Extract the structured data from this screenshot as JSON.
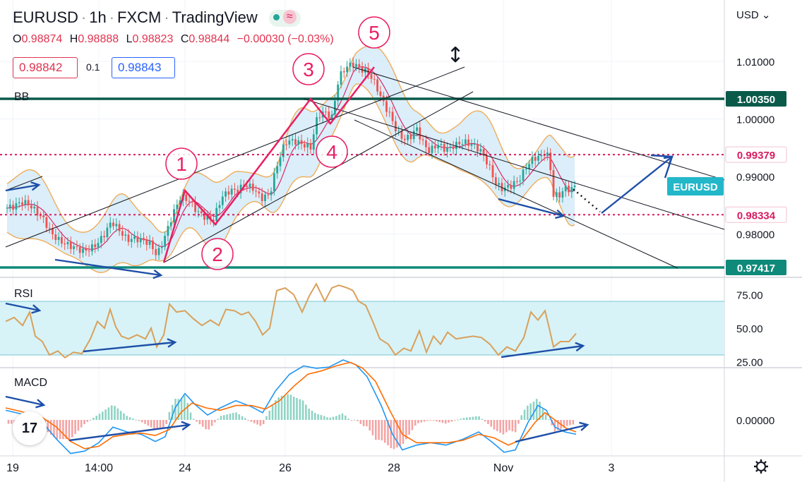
{
  "header": {
    "symbol": "EURUSD",
    "interval": "1h",
    "broker": "FXCM",
    "platform": "TradingView",
    "separator": "·",
    "ohlc": {
      "o_label": "O",
      "o": "0.98874",
      "h_label": "H",
      "h": "0.98888",
      "l_label": "L",
      "l": "0.98823",
      "c_label": "C",
      "c": "0.98844",
      "change": "−0.00030 (−0.03%)"
    },
    "sell_price": "0.98842",
    "spread": "0.1",
    "buy_price": "0.98843"
  },
  "currency_menu": "USD",
  "colors": {
    "up": "#26a69a",
    "down": "#ef5350",
    "bb_band": "#f0a850",
    "bb_fill": "#cfe8f7",
    "bb_basis": "#d81b60",
    "wave": "#e91e63",
    "arrow": "#1e4fa8",
    "level_dark": "#0a5a4a",
    "level_teal": "#0f8a7a",
    "level_red": "#d81b60",
    "rsi_line": "#d9a05b",
    "rsi_band": "#d7f3f7",
    "macd_line": "#2196f3",
    "signal_line": "#ff6d00",
    "label_teal": "#22b7c9"
  },
  "chart_data": [
    {
      "type": "candlestick",
      "title": "EURUSD · 1h · FXCM",
      "y_axis": {
        "range": [
          0.9725,
          1.0195
        ],
        "ticks": [
          "1.01000",
          "1.00000",
          "0.99000",
          "0.98000"
        ]
      },
      "x_axis": {
        "range": [
          0,
          1026
        ],
        "ticks": [
          {
            "label": "19",
            "x": 18
          },
          {
            "label": "14:00",
            "x": 140
          },
          {
            "label": "24",
            "x": 262
          },
          {
            "label": "26",
            "x": 404
          },
          {
            "label": "28",
            "x": 558
          },
          {
            "label": "Nov",
            "x": 713
          },
          {
            "label": "3",
            "x": 866
          }
        ]
      },
      "close_path": [
        [
          8,
          0.9845
        ],
        [
          20,
          0.9848
        ],
        [
          30,
          0.9856
        ],
        [
          40,
          0.9852
        ],
        [
          52,
          0.9838
        ],
        [
          62,
          0.9825
        ],
        [
          72,
          0.9802
        ],
        [
          82,
          0.979
        ],
        [
          94,
          0.9782
        ],
        [
          106,
          0.9776
        ],
        [
          118,
          0.977
        ],
        [
          128,
          0.9774
        ],
        [
          140,
          0.9786
        ],
        [
          150,
          0.9804
        ],
        [
          158,
          0.9822
        ],
        [
          168,
          0.9808
        ],
        [
          180,
          0.979
        ],
        [
          192,
          0.9792
        ],
        [
          204,
          0.9788
        ],
        [
          214,
          0.9782
        ],
        [
          222,
          0.9762
        ],
        [
          232,
          0.979
        ],
        [
          244,
          0.9832
        ],
        [
          256,
          0.9865
        ],
        [
          268,
          0.9858
        ],
        [
          280,
          0.9838
        ],
        [
          292,
          0.9828
        ],
        [
          302,
          0.9824
        ],
        [
          314,
          0.9864
        ],
        [
          326,
          0.9876
        ],
        [
          336,
          0.9875
        ],
        [
          346,
          0.9886
        ],
        [
          358,
          0.988
        ],
        [
          370,
          0.9862
        ],
        [
          382,
          0.9868
        ],
        [
          392,
          0.9918
        ],
        [
          404,
          0.996
        ],
        [
          416,
          0.9962
        ],
        [
          428,
          0.9956
        ],
        [
          440,
          0.995
        ],
        [
          450,
          1.0006
        ],
        [
          460,
          1.0012
        ],
        [
          470,
          1.0002
        ],
        [
          480,
          1.0072
        ],
        [
          490,
          1.009
        ],
        [
          500,
          1.0096
        ],
        [
          512,
          1.0086
        ],
        [
          522,
          1.008
        ],
        [
          532,
          1.006
        ],
        [
          542,
          1.003
        ],
        [
          552,
          1.0008
        ],
        [
          562,
          0.9978
        ],
        [
          572,
          0.9964
        ],
        [
          582,
          0.997
        ],
        [
          590,
          0.9984
        ],
        [
          598,
          0.996
        ],
        [
          608,
          0.9944
        ],
        [
          620,
          0.9956
        ],
        [
          632,
          0.9946
        ],
        [
          644,
          0.9954
        ],
        [
          656,
          0.996
        ],
        [
          668,
          0.9956
        ],
        [
          680,
          0.9946
        ],
        [
          692,
          0.992
        ],
        [
          702,
          0.9888
        ],
        [
          712,
          0.9878
        ],
        [
          724,
          0.9884
        ],
        [
          736,
          0.9895
        ],
        [
          746,
          0.9918
        ],
        [
          756,
          0.9932
        ],
        [
          766,
          0.9934
        ],
        [
          774,
          0.9945
        ],
        [
          780,
          0.991
        ],
        [
          784,
          0.9868
        ],
        [
          792,
          0.9866
        ],
        [
          800,
          0.988
        ],
        [
          808,
          0.9877
        ],
        [
          816,
          0.9884
        ]
      ],
      "price_labels": [
        {
          "value": 1.0035,
          "text": "1.00350",
          "style": "dark"
        },
        {
          "value": 0.99379,
          "text": "0.99379",
          "style": "red"
        },
        {
          "value": 0.98334,
          "text": "0.98334",
          "style": "red"
        },
        {
          "value": 0.97417,
          "text": "0.97417",
          "style": "teal"
        }
      ],
      "symbol_tag": {
        "text": "EURUSD",
        "value": 0.98844
      },
      "indicator_label": "BB",
      "wave_labels": [
        "1",
        "2",
        "3",
        "4",
        "5"
      ]
    },
    {
      "type": "line",
      "title": "RSI",
      "y_ticks": [
        "75.00",
        "50.00",
        "25.00"
      ],
      "band": [
        30,
        70
      ],
      "path": [
        [
          8,
          55
        ],
        [
          20,
          58
        ],
        [
          32,
          52
        ],
        [
          42,
          62
        ],
        [
          50,
          44
        ],
        [
          60,
          40
        ],
        [
          70,
          30
        ],
        [
          82,
          33
        ],
        [
          92,
          28
        ],
        [
          104,
          32
        ],
        [
          116,
          31
        ],
        [
          128,
          42
        ],
        [
          138,
          55
        ],
        [
          148,
          50
        ],
        [
          156,
          64
        ],
        [
          164,
          51
        ],
        [
          172,
          44
        ],
        [
          182,
          42
        ],
        [
          194,
          45
        ],
        [
          206,
          42
        ],
        [
          214,
          50
        ],
        [
          222,
          36
        ],
        [
          232,
          45
        ],
        [
          240,
          68
        ],
        [
          250,
          62
        ],
        [
          262,
          63
        ],
        [
          274,
          57
        ],
        [
          286,
          52
        ],
        [
          298,
          56
        ],
        [
          310,
          52
        ],
        [
          320,
          64
        ],
        [
          332,
          63
        ],
        [
          342,
          60
        ],
        [
          352,
          62
        ],
        [
          362,
          55
        ],
        [
          372,
          45
        ],
        [
          382,
          50
        ],
        [
          392,
          78
        ],
        [
          404,
          80
        ],
        [
          416,
          75
        ],
        [
          428,
          62
        ],
        [
          438,
          74
        ],
        [
          448,
          83
        ],
        [
          460,
          70
        ],
        [
          470,
          80
        ],
        [
          480,
          82
        ],
        [
          492,
          80
        ],
        [
          500,
          78
        ],
        [
          508,
          70
        ],
        [
          518,
          67
        ],
        [
          528,
          55
        ],
        [
          538,
          42
        ],
        [
          550,
          38
        ],
        [
          560,
          30
        ],
        [
          572,
          35
        ],
        [
          582,
          33
        ],
        [
          594,
          48
        ],
        [
          604,
          32
        ],
        [
          614,
          44
        ],
        [
          624,
          38
        ],
        [
          634,
          47
        ],
        [
          646,
          42
        ],
        [
          658,
          43
        ],
        [
          670,
          44
        ],
        [
          682,
          43
        ],
        [
          694,
          38
        ],
        [
          706,
          30
        ],
        [
          718,
          36
        ],
        [
          730,
          33
        ],
        [
          742,
          43
        ],
        [
          752,
          62
        ],
        [
          762,
          56
        ],
        [
          772,
          63
        ],
        [
          778,
          50
        ],
        [
          784,
          36
        ],
        [
          794,
          40
        ],
        [
          806,
          40
        ],
        [
          816,
          46
        ]
      ]
    },
    {
      "type": "line+histogram",
      "title": "MACD",
      "y_ticks": [
        "0.00000"
      ],
      "macd": [
        [
          8,
          0.0008
        ],
        [
          30,
          0.0005
        ],
        [
          60,
          -0.0002
        ],
        [
          80,
          -0.0016
        ],
        [
          100,
          -0.0028
        ],
        [
          120,
          -0.0026
        ],
        [
          140,
          -0.0019
        ],
        [
          160,
          -0.0006
        ],
        [
          180,
          -0.001
        ],
        [
          200,
          -0.0012
        ],
        [
          220,
          -0.0018
        ],
        [
          234,
          -0.0014
        ],
        [
          248,
          0.001
        ],
        [
          262,
          0.0022
        ],
        [
          276,
          0.0013
        ],
        [
          294,
          0.0004
        ],
        [
          312,
          0.001
        ],
        [
          334,
          0.0016
        ],
        [
          356,
          0.0011
        ],
        [
          372,
          0.0006
        ],
        [
          390,
          0.0024
        ],
        [
          410,
          0.0038
        ],
        [
          430,
          0.0045
        ],
        [
          448,
          0.0043
        ],
        [
          466,
          0.0044
        ],
        [
          486,
          0.005
        ],
        [
          504,
          0.0046
        ],
        [
          520,
          0.0036
        ],
        [
          540,
          0.0012
        ],
        [
          556,
          -0.0012
        ],
        [
          570,
          -0.0025
        ],
        [
          590,
          -0.0021
        ],
        [
          610,
          -0.0019
        ],
        [
          632,
          -0.0021
        ],
        [
          656,
          -0.0016
        ],
        [
          678,
          -0.001
        ],
        [
          698,
          -0.0019
        ],
        [
          714,
          -0.0027
        ],
        [
          730,
          -0.0025
        ],
        [
          748,
          -0.0002
        ],
        [
          762,
          0.0012
        ],
        [
          774,
          0.0008
        ],
        [
          786,
          -0.0006
        ],
        [
          800,
          -0.001
        ],
        [
          816,
          -0.0012
        ]
      ],
      "signal": [
        [
          8,
          0.001
        ],
        [
          30,
          0.0007
        ],
        [
          60,
          0.0002
        ],
        [
          80,
          -0.0006
        ],
        [
          100,
          -0.0018
        ],
        [
          120,
          -0.0024
        ],
        [
          140,
          -0.0022
        ],
        [
          160,
          -0.0014
        ],
        [
          180,
          -0.0012
        ],
        [
          200,
          -0.0011
        ],
        [
          220,
          -0.0013
        ],
        [
          240,
          -0.0008
        ],
        [
          256,
          0.0006
        ],
        [
          272,
          0.0014
        ],
        [
          292,
          0.001
        ],
        [
          312,
          0.0008
        ],
        [
          334,
          0.0012
        ],
        [
          356,
          0.0012
        ],
        [
          376,
          0.0009
        ],
        [
          396,
          0.0016
        ],
        [
          416,
          0.0028
        ],
        [
          436,
          0.0038
        ],
        [
          456,
          0.0041
        ],
        [
          476,
          0.0045
        ],
        [
          496,
          0.0048
        ],
        [
          514,
          0.0043
        ],
        [
          532,
          0.0032
        ],
        [
          552,
          0.0008
        ],
        [
          570,
          -0.0012
        ],
        [
          590,
          -0.0019
        ],
        [
          612,
          -0.0019
        ],
        [
          634,
          -0.0019
        ],
        [
          656,
          -0.0017
        ],
        [
          678,
          -0.0012
        ],
        [
          700,
          -0.0015
        ],
        [
          720,
          -0.0021
        ],
        [
          740,
          -0.0016
        ],
        [
          758,
          -0.0002
        ],
        [
          772,
          0.0006
        ],
        [
          786,
          0.0
        ],
        [
          802,
          -0.0007
        ],
        [
          816,
          -0.001
        ]
      ]
    }
  ]
}
